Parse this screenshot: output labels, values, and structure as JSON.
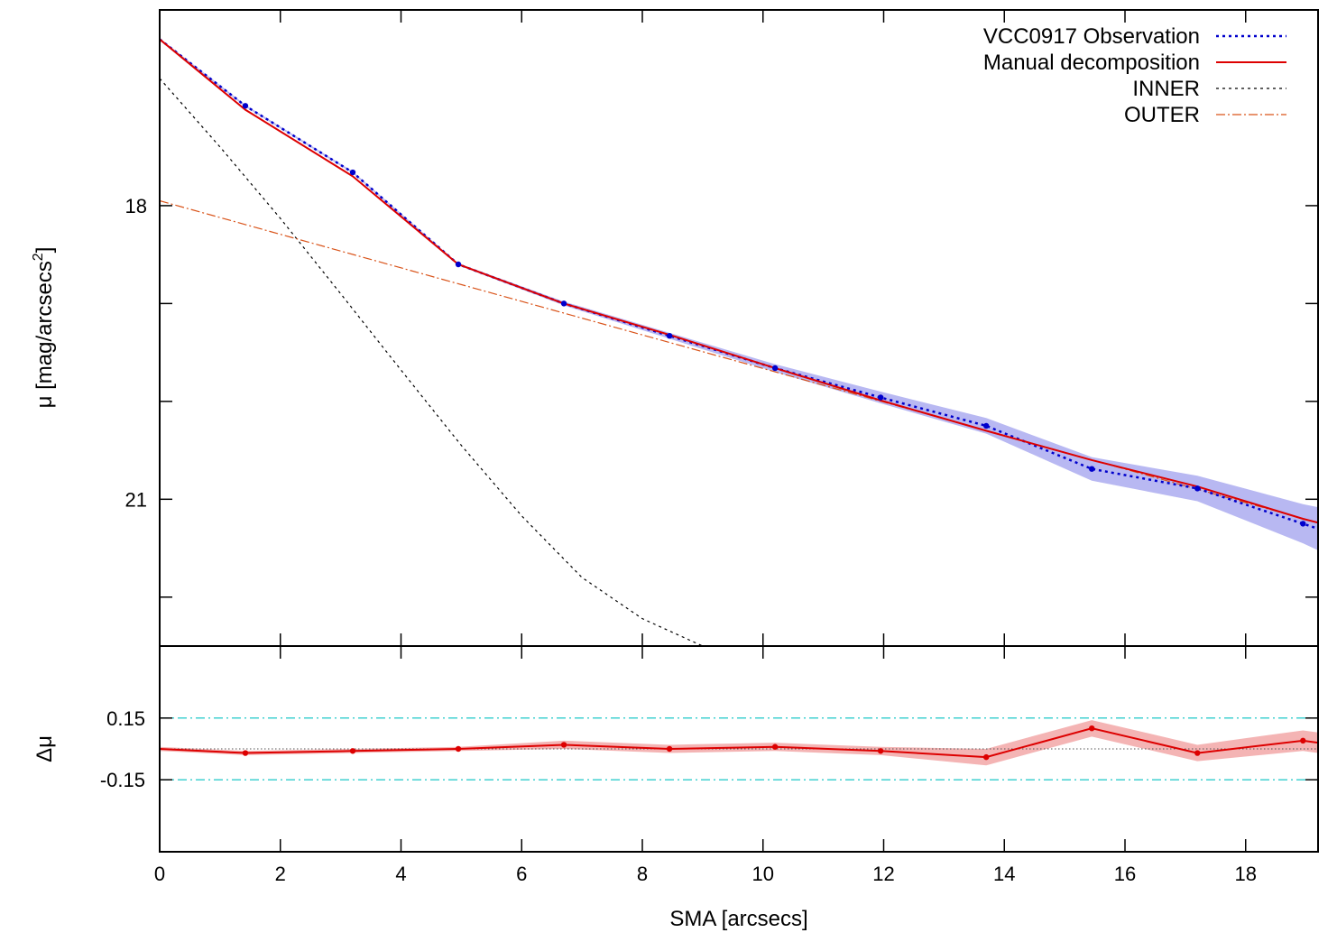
{
  "chart_data": [
    {
      "type": "line",
      "panel": "main",
      "ylabel_text": "μ [mag/arcsecs",
      "ylabel_sup": "2",
      "ylabel_close": "]",
      "xlim": [
        0,
        19.2
      ],
      "ylim": [
        22.5,
        16.0
      ],
      "y_inverted": true,
      "yticks": [
        18,
        21
      ],
      "yticks_unlabeled": [
        19,
        20,
        22
      ],
      "legend_position": "top-right",
      "grid": false,
      "colors": {
        "observation": "#0000cc",
        "observation_band": "#b8b8f2",
        "manual": "#dd0000",
        "inner": "#000000",
        "outer": "#d95319"
      },
      "series": [
        {
          "name": "VCC0917 Observation",
          "style": "dotted-with-points",
          "x": [
            0,
            1.42,
            3.2,
            4.95,
            6.7,
            8.45,
            10.2,
            11.95,
            13.7,
            15.45,
            17.2,
            18.95
          ],
          "y": [
            16.3,
            16.98,
            17.66,
            18.6,
            19.0,
            19.33,
            19.66,
            19.96,
            20.25,
            20.69,
            20.89,
            21.25
          ],
          "band_halfwidth": [
            0.01,
            0.01,
            0.01,
            0.01,
            0.02,
            0.03,
            0.04,
            0.06,
            0.08,
            0.12,
            0.13,
            0.2
          ]
        },
        {
          "name": "Manual decomposition",
          "style": "solid",
          "x": [
            0,
            1.42,
            3.2,
            4.95,
            6.7,
            8.45,
            10.2,
            11.95,
            13.7,
            15.45,
            17.2,
            18.95,
            19.2
          ],
          "y": [
            16.3,
            17.02,
            17.7,
            18.6,
            19.0,
            19.32,
            19.66,
            19.99,
            20.3,
            20.6,
            20.87,
            21.2,
            21.24
          ]
        },
        {
          "name": "INNER",
          "style": "dashed",
          "x": [
            0,
            1,
            2,
            3,
            4,
            5,
            6,
            7,
            8,
            9,
            9.05
          ],
          "y": [
            16.7,
            17.4,
            18.13,
            18.9,
            19.68,
            20.45,
            21.17,
            21.8,
            22.22,
            22.5,
            22.52
          ]
        },
        {
          "name": "OUTER",
          "style": "dash-dot",
          "x": [
            0,
            19.2
          ],
          "y": [
            17.95,
            21.24
          ]
        }
      ]
    },
    {
      "type": "line",
      "panel": "residual",
      "xlabel": "SMA [arcsecs]",
      "ylabel": "Δμ",
      "xlim": [
        0,
        19.2
      ],
      "ylim": [
        -0.5,
        0.5
      ],
      "xticks": [
        0,
        2,
        4,
        6,
        8,
        10,
        12,
        14,
        16,
        18
      ],
      "yticks": [
        0.15,
        -0.15
      ],
      "ytick_labels": [
        "0.15",
        "-0.15"
      ],
      "reference_lines": [
        0.15,
        -0.15,
        0
      ],
      "colors": {
        "residual": "#dd0000",
        "residual_band": "#f4b4b4",
        "reference": "#40d0d0",
        "zero": "#555555"
      },
      "series": [
        {
          "name": "",
          "x": [
            0,
            1.42,
            3.2,
            4.95,
            6.7,
            8.45,
            10.2,
            11.95,
            13.7,
            15.45,
            17.2,
            18.95,
            19.2
          ],
          "y": [
            0.0,
            -0.02,
            -0.01,
            0.0,
            0.02,
            0.0,
            0.01,
            -0.01,
            -0.04,
            0.1,
            -0.02,
            0.04,
            0.03
          ],
          "band_halfwidth": [
            0.01,
            0.01,
            0.01,
            0.01,
            0.02,
            0.02,
            0.02,
            0.02,
            0.04,
            0.04,
            0.04,
            0.05,
            0.05
          ]
        }
      ]
    }
  ]
}
